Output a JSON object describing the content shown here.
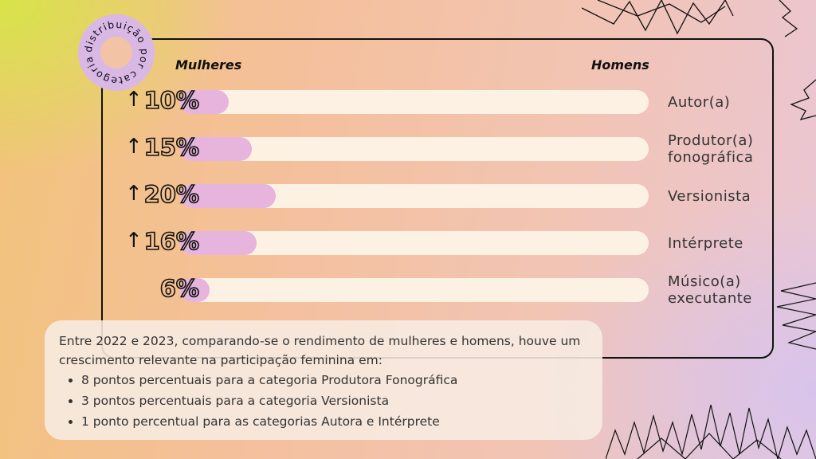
{
  "badge": {
    "text": "distribuição por categoria"
  },
  "chart_data": {
    "type": "bar",
    "orientation": "horizontal",
    "left_label": "Mulheres",
    "right_label": "Homens",
    "categories": [
      "Autor(a)",
      "Produtor(a)\nfonográfica",
      "Versionista",
      "Intérprete",
      "Músico(a)\nexecutante"
    ],
    "value_labels": [
      "10%",
      "15%",
      "20%",
      "16%",
      "6%"
    ],
    "values": [
      10,
      15,
      20,
      16,
      6
    ],
    "increase_arrow": [
      true,
      true,
      true,
      true,
      false
    ],
    "xlim": [
      0,
      100
    ]
  },
  "note": {
    "intro": "Entre 2022 e 2023, comparando-se o rendimento de mulheres e homens, houve um crescimento relevante na participação feminina em:",
    "bullets": [
      "8 pontos percentuais para a categoria Produtora Fonográfica",
      "3 pontos percentuais para a categoria Versionista",
      "1 ponto percentual para as categorias Autora e Intérprete"
    ]
  },
  "colors": {
    "women_bar": "#e6b4dc",
    "track": "#fdf1e4",
    "badge": "#d9b8e6"
  }
}
